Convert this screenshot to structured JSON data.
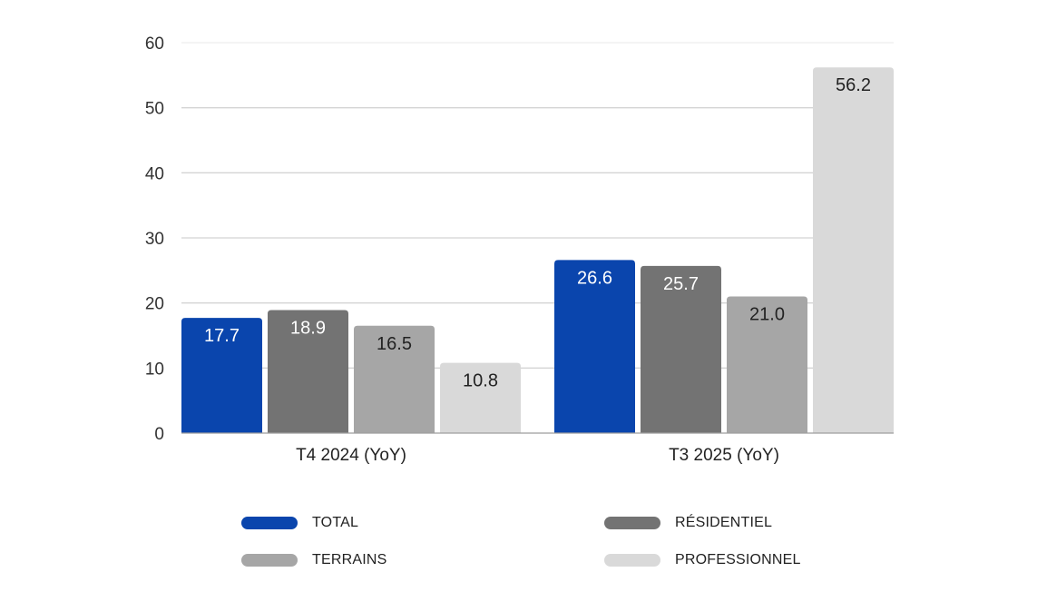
{
  "chart_data": {
    "type": "bar",
    "title": "",
    "xlabel": "",
    "ylabel": "",
    "ylim": [
      0,
      60
    ],
    "yticks": [
      0,
      10,
      20,
      30,
      40,
      50,
      60
    ],
    "grid": true,
    "legend_position": "bottom",
    "categories": [
      "T4 2024 (YoY)",
      "T3 2025 (YoY)"
    ],
    "series": [
      {
        "name": "TOTAL",
        "color": "#0a45ad",
        "label_color": "#ffffff",
        "values": [
          17.7,
          26.6
        ]
      },
      {
        "name": "RÉSIDENTIEL",
        "color": "#737373",
        "label_color": "#ffffff",
        "values": [
          18.9,
          25.7
        ]
      },
      {
        "name": "TERRAINS",
        "color": "#a6a6a6",
        "label_color": "#222222",
        "values": [
          16.5,
          21.0
        ]
      },
      {
        "name": "PROFESSIONNEL",
        "color": "#d9d9d9",
        "label_color": "#222222",
        "values": [
          10.8,
          56.2
        ]
      }
    ]
  }
}
